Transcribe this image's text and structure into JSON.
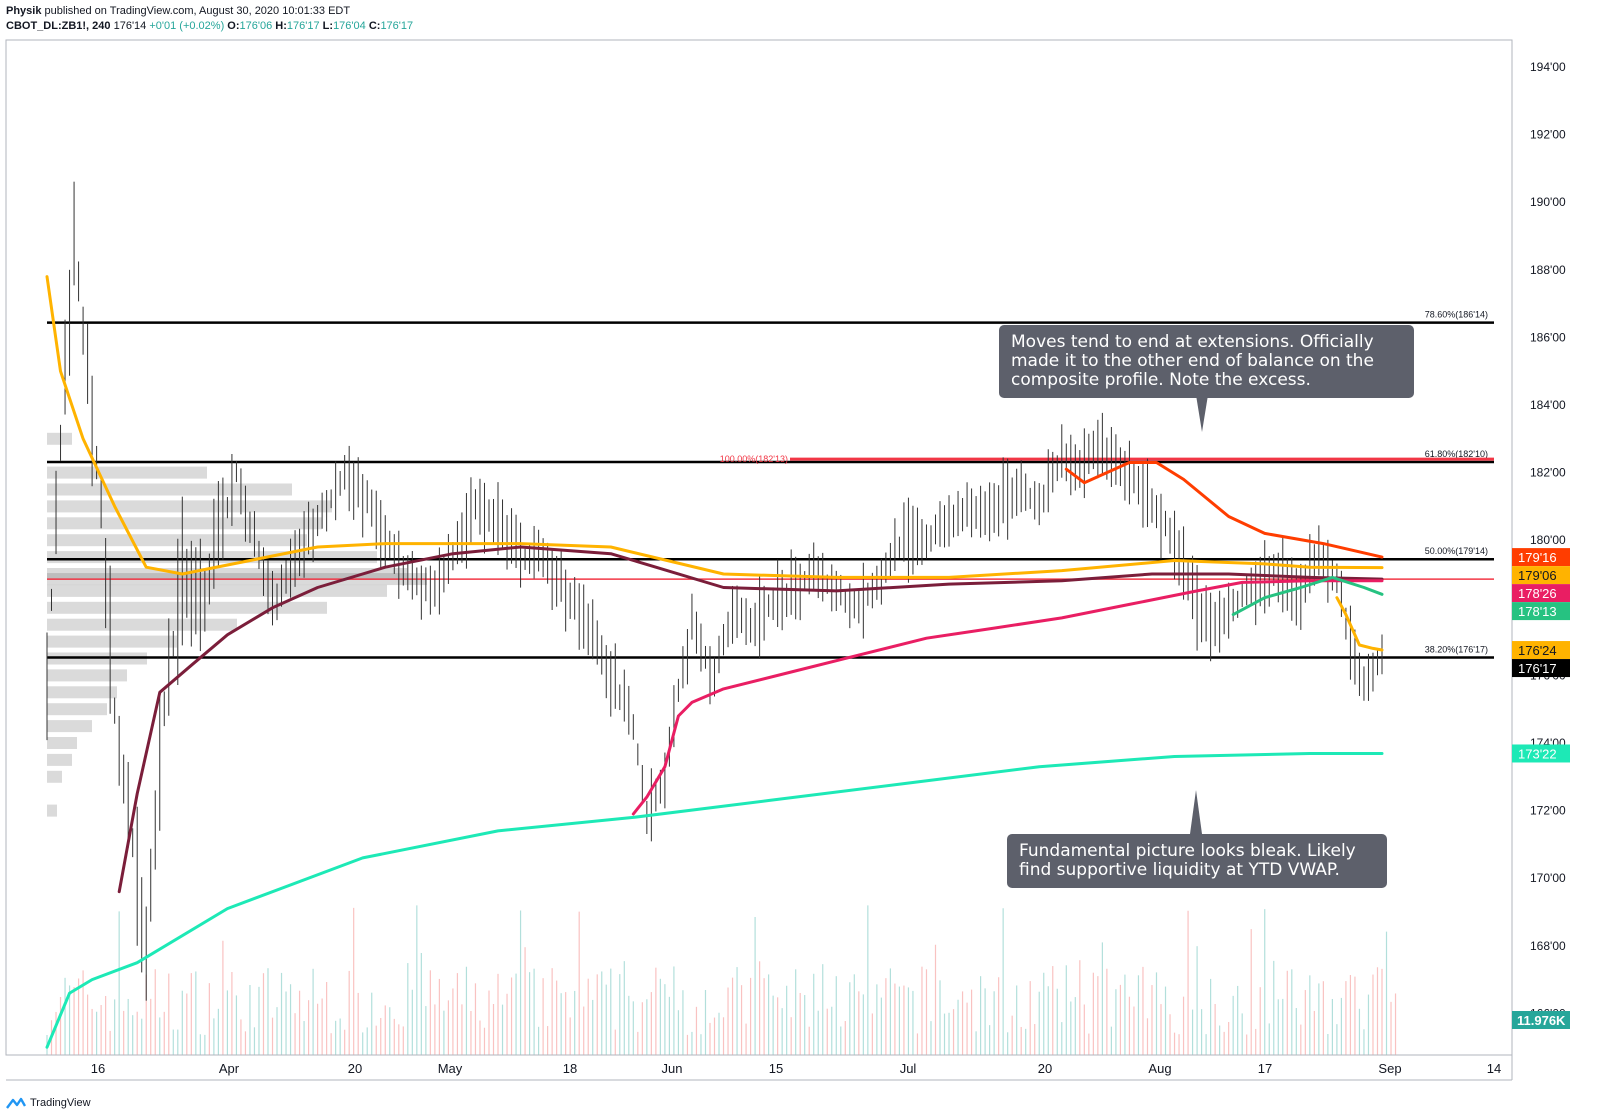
{
  "header": {
    "author": "Physik",
    "published": "published on TradingView.com, August 30, 2020 10:01:33 EDT",
    "symbol": "CBOT_DL:ZB1!, 240",
    "last": "176'14",
    "change": "+0'01 (+0.02%)",
    "o_label": "O:",
    "o": "176'06",
    "h_label": "H:",
    "h": "176'17",
    "l_label": "L:",
    "l": "176'04",
    "c_label": "C:",
    "c": "176'17"
  },
  "footer": {
    "brand": "TradingView"
  },
  "annotations": {
    "top": [
      "Moves tend to end at extensions. Officially",
      "made it to the other end of balance on the",
      "composite profile. Note the excess."
    ],
    "bottom": [
      "Fundamental picture looks bleak. Likely",
      "find supportive liquidity at YTD VWAP."
    ]
  },
  "colors": {
    "up": "#26a69a",
    "down": "#ef5350",
    "bar": "#333333",
    "vwap_ytd": "#1de9b6",
    "vwap_orange": "#ffb300",
    "vwap_maroon": "#7b1e3a",
    "vwap_crimson": "#e91e63",
    "vwap_red": "#ff3d00",
    "vwap_teal": "#26c281",
    "fib_line": "#000000",
    "profile": "#555555"
  },
  "chart_data": {
    "type": "line",
    "price_axis_ticks": [
      "194'00",
      "192'00",
      "190'00",
      "188'00",
      "186'00",
      "184'00",
      "182'00",
      "180'00",
      "178'00",
      "176'00",
      "174'00",
      "172'00",
      "170'00",
      "168'00",
      "166'00"
    ],
    "price_axis_values": [
      194,
      192,
      190,
      188,
      186,
      184,
      182,
      180,
      178,
      176,
      174,
      172,
      170,
      168,
      166
    ],
    "time_axis_labels": [
      "16",
      "Apr",
      "20",
      "May",
      "18",
      "Jun",
      "15",
      "Jul",
      "20",
      "Aug",
      "17",
      "Sep",
      "14"
    ],
    "fib_levels": [
      {
        "label": "78.60%(186'14)",
        "value": 186.4375
      },
      {
        "label": "61.80%(182'10)",
        "value": 182.3125
      },
      {
        "label": "50.00%(179'14)",
        "value": 179.4375
      },
      {
        "label": "38.20%(176'17)",
        "value": 176.53
      }
    ],
    "extension_level": {
      "label": "100.00%(182'13)",
      "value": 182.4
    },
    "poc_level": 178.85,
    "price_tags": [
      {
        "text": "179'16",
        "value": 179.5,
        "color": "#ff3d00"
      },
      {
        "text": "179'06",
        "value": 179.19,
        "color": "#ffb300"
      },
      {
        "text": "178'26",
        "value": 178.8,
        "color": "#e91e63"
      },
      {
        "text": "178'13",
        "value": 178.4,
        "color": "#26c281"
      },
      {
        "text": "176'24",
        "value": 176.75,
        "color": "#ffb300"
      },
      {
        "text": "176'17",
        "value": 176.53,
        "color": "#000000"
      },
      {
        "text": "173'22",
        "value": 173.69,
        "color": "#1de9b6"
      }
    ],
    "volume_tag": "11.976K",
    "series": [
      {
        "key": "ytd_vwap",
        "x": [
          0,
          5,
          10,
          20,
          40,
          70,
          100,
          130,
          160,
          190,
          220,
          250,
          280,
          296
        ],
        "values": [
          165,
          166.6,
          167,
          167.5,
          169.1,
          170.6,
          171.4,
          171.8,
          172.3,
          172.8,
          173.3,
          173.6,
          173.69,
          173.69
        ]
      },
      {
        "key": "anchored_orange",
        "x": [
          0,
          3,
          8,
          15,
          22,
          30,
          45,
          60,
          75,
          90,
          105,
          125,
          150,
          175,
          200,
          225,
          250,
          270,
          280,
          296
        ],
        "values": [
          187.8,
          185,
          183,
          181,
          179.2,
          179.0,
          179.4,
          179.8,
          179.9,
          179.9,
          179.9,
          179.8,
          179.0,
          178.9,
          178.9,
          179.1,
          179.4,
          179.3,
          179.2,
          179.19
        ]
      },
      {
        "key": "anchored_maroon",
        "x": [
          16,
          20,
          25,
          32,
          40,
          50,
          60,
          75,
          90,
          105,
          125,
          135,
          150,
          175,
          200,
          225,
          245,
          262,
          280,
          296
        ],
        "values": [
          169.6,
          172.5,
          175.5,
          176.3,
          177.2,
          178,
          178.6,
          179.2,
          179.6,
          179.8,
          179.6,
          179.2,
          178.6,
          178.5,
          178.7,
          178.8,
          179.0,
          179.0,
          178.9,
          178.85
        ]
      },
      {
        "key": "june_vwap",
        "x": [
          130,
          133,
          137,
          140,
          143,
          150,
          165,
          180,
          195,
          210,
          225,
          240,
          255,
          265,
          280,
          296
        ],
        "values": [
          171.9,
          172.4,
          173.3,
          174.8,
          175.2,
          175.6,
          176.1,
          176.6,
          177.1,
          177.4,
          177.7,
          178.1,
          178.5,
          178.75,
          178.8,
          178.8
        ]
      },
      {
        "key": "aug_vwap",
        "x": [
          226,
          230,
          240,
          246,
          252,
          262,
          270,
          283,
          296
        ],
        "values": [
          182.1,
          181.7,
          182.3,
          182.3,
          181.8,
          180.7,
          180.2,
          179.9,
          179.5
        ]
      },
      {
        "key": "late_aug_vwap",
        "x": [
          263,
          270,
          278,
          285,
          292,
          296
        ],
        "values": [
          177.8,
          178.3,
          178.6,
          178.9,
          178.6,
          178.4
        ]
      },
      {
        "key": "recent_vwap",
        "x": [
          286,
          288,
          291,
          294,
          296
        ],
        "values": [
          178.3,
          177.8,
          176.9,
          176.8,
          176.75
        ]
      }
    ],
    "price_path": {
      "x": [
        0,
        3,
        6,
        8,
        12,
        15,
        18,
        22,
        26,
        30,
        34,
        38,
        42,
        46,
        50,
        55,
        60,
        66,
        72,
        75,
        80,
        85,
        90,
        95,
        100,
        105,
        110,
        115,
        120,
        125,
        130,
        133,
        137,
        140,
        143,
        148,
        152,
        156,
        160,
        165,
        170,
        175,
        180,
        185,
        190,
        195,
        200,
        205,
        210,
        215,
        220,
        225,
        228,
        232,
        235,
        240,
        245,
        250,
        255,
        258,
        262,
        266,
        270,
        274,
        278,
        282,
        286,
        289,
        292,
        296
      ],
      "values": [
        176,
        183,
        189,
        186,
        181,
        175,
        172,
        168,
        175,
        179,
        178,
        180,
        182,
        180,
        178,
        179.5,
        180.5,
        182,
        181,
        180,
        179,
        178.5,
        179.5,
        181,
        180.5,
        179.5,
        179.5,
        178.5,
        177.5,
        176,
        174.5,
        172,
        173,
        175.5,
        177.5,
        176,
        178,
        177.5,
        178,
        178.5,
        179,
        178.5,
        178,
        179,
        180,
        180,
        180.5,
        181,
        181,
        181.5,
        181,
        182.5,
        182,
        182.8,
        182.5,
        182,
        181,
        180,
        178,
        177.5,
        178,
        178.5,
        179,
        179,
        178.5,
        179.5,
        178.8,
        177,
        175.7,
        176.53
      ]
    },
    "volume_profile_bins": [
      {
        "price": 183,
        "width": 25
      },
      {
        "price": 182,
        "width": 160
      },
      {
        "price": 181.5,
        "width": 245
      },
      {
        "price": 181,
        "width": 285
      },
      {
        "price": 180.5,
        "width": 275
      },
      {
        "price": 180,
        "width": 260
      },
      {
        "price": 179.5,
        "width": 330
      },
      {
        "price": 179,
        "width": 360
      },
      {
        "price": 178.85,
        "width": 380
      },
      {
        "price": 178.5,
        "width": 340
      },
      {
        "price": 178,
        "width": 280
      },
      {
        "price": 177.5,
        "width": 190
      },
      {
        "price": 177,
        "width": 130
      },
      {
        "price": 176.5,
        "width": 100
      },
      {
        "price": 176,
        "width": 80
      },
      {
        "price": 175.5,
        "width": 70
      },
      {
        "price": 175,
        "width": 60
      },
      {
        "price": 174.5,
        "width": 45
      },
      {
        "price": 174,
        "width": 30
      },
      {
        "price": 173.5,
        "width": 25
      },
      {
        "price": 173,
        "width": 15
      },
      {
        "price": 172,
        "width": 10
      }
    ]
  }
}
